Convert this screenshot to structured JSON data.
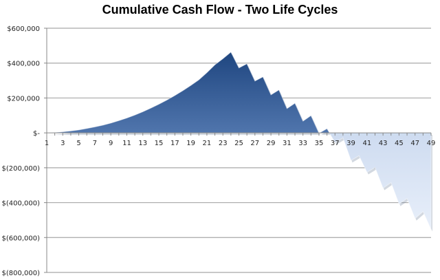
{
  "chart_data": {
    "type": "area",
    "title": "Cumulative Cash Flow - Two Life Cycles",
    "xlabel": "",
    "ylabel": "",
    "ylim": [
      -800000,
      600000
    ],
    "grid": true,
    "legend": "none",
    "y_ticks": [
      600000,
      400000,
      200000,
      0,
      -200000,
      -400000,
      -600000,
      -800000
    ],
    "y_tick_labels": [
      "$600,000",
      "$400,000",
      "$200,000",
      "$-",
      "$(200,000)",
      "$(400,000)",
      "$(600,000)",
      "$(800,000)"
    ],
    "x_tick_labels": [
      "1",
      "3",
      "5",
      "7",
      "9",
      "11",
      "13",
      "15",
      "17",
      "19",
      "21",
      "23",
      "25",
      "27",
      "29",
      "31",
      "33",
      "35",
      "37",
      "39",
      "41",
      "43",
      "45",
      "47",
      "49"
    ],
    "categories": [
      1,
      2,
      3,
      4,
      5,
      6,
      7,
      8,
      9,
      10,
      11,
      12,
      13,
      14,
      15,
      16,
      17,
      18,
      19,
      20,
      21,
      22,
      23,
      24,
      25,
      26,
      27,
      28,
      29,
      30,
      31,
      32,
      33,
      34,
      35,
      36,
      37,
      38,
      39,
      40,
      41,
      42,
      43,
      44,
      45,
      46,
      47,
      48,
      49
    ],
    "series": [
      {
        "name": "Cumulative Cash Flow",
        "values": [
          0,
          2000,
          6000,
          11000,
          17000,
          25000,
          34000,
          44000,
          56000,
          70000,
          85000,
          102000,
          121000,
          142000,
          164000,
          188000,
          214000,
          242000,
          272000,
          304000,
          345000,
          390000,
          425000,
          463000,
          372000,
          396000,
          297000,
          321000,
          218000,
          246000,
          139000,
          170000,
          67000,
          99000,
          -2000,
          24000,
          -55000,
          -28000,
          -158000,
          -131000,
          -226000,
          -198000,
          -317000,
          -285000,
          -408000,
          -376000,
          -491000,
          -451000,
          -554000
        ]
      }
    ]
  }
}
